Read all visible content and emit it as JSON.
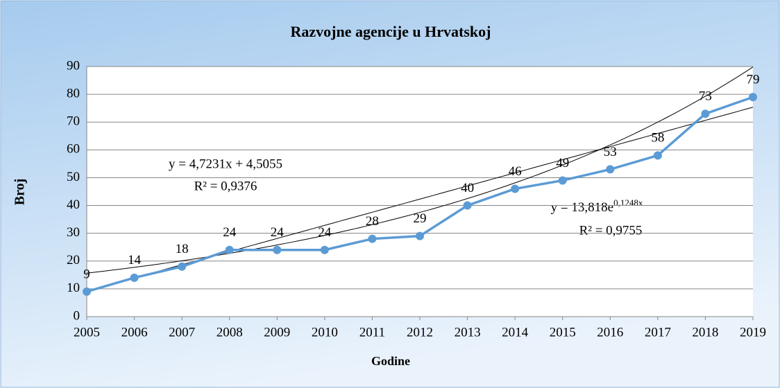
{
  "chart_data": {
    "type": "line",
    "title": "Razvojne agencije u Hrvatskoj",
    "x_label": "Godine",
    "y_label": "Broj",
    "categories": [
      "2005",
      "2006",
      "2007",
      "2008",
      "2009",
      "2010",
      "2011",
      "2012",
      "2013",
      "2014",
      "2015",
      "2016",
      "2017",
      "2018",
      "2019"
    ],
    "series": [
      {
        "name": "Broj",
        "color": "#5b9bd5",
        "values": [
          9,
          14,
          18,
          24,
          24,
          24,
          28,
          29,
          40,
          46,
          49,
          53,
          58,
          73,
          79
        ]
      }
    ],
    "ylim": [
      0,
      90
    ],
    "yticks": [
      0,
      10,
      20,
      30,
      40,
      50,
      60,
      70,
      80,
      90
    ],
    "grid": true,
    "trendlines": [
      {
        "kind": "linear",
        "slope": 4.7231,
        "intercept": 4.5055,
        "label": "y = 4,7231x + 4,5055",
        "r2_label": "R² = 0,9376"
      },
      {
        "kind": "exponential",
        "coefficient": 13.818,
        "rate": 0.1248,
        "label": "y = 13,818e",
        "exponent_label": "0,1248x",
        "r2_label": "R² = 0,9755"
      }
    ]
  }
}
